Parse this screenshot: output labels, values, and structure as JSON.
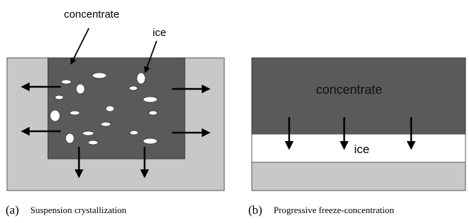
{
  "panels": [
    {
      "label": "(a)",
      "caption": "Suspension crystallization",
      "concentrate_label": "concentrate",
      "ice_label": "ice"
    },
    {
      "label": "(b)",
      "caption": "Progressive freeze-concentration",
      "concentrate_label": "concentrate",
      "ice_label": "ice"
    }
  ]
}
